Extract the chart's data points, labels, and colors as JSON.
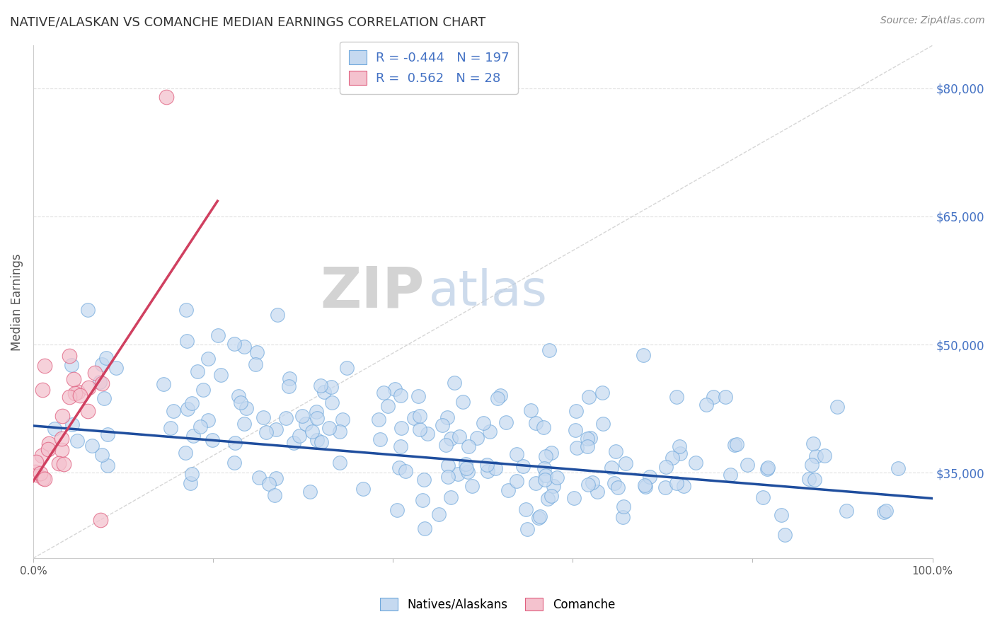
{
  "title": "NATIVE/ALASKAN VS COMANCHE MEDIAN EARNINGS CORRELATION CHART",
  "source": "Source: ZipAtlas.com",
  "ylabel": "Median Earnings",
  "xlim": [
    0.0,
    1.0
  ],
  "ylim": [
    25000,
    85000
  ],
  "y_tick_labels": [
    "$35,000",
    "$50,000",
    "$65,000",
    "$80,000"
  ],
  "y_tick_values": [
    35000,
    50000,
    65000,
    80000
  ],
  "legend_R_blue": "-0.444",
  "legend_N_blue": "197",
  "legend_R_pink": "0.562",
  "legend_N_pink": "28",
  "blue_fill": "#c5d9f0",
  "blue_edge": "#6fa8dc",
  "pink_fill": "#f4c2ce",
  "pink_edge": "#e06080",
  "blue_line_color": "#1f4e9e",
  "pink_line_color": "#d04060",
  "diag_line_color": "#cccccc",
  "background_color": "#ffffff",
  "grid_color": "#e0e0e0",
  "title_color": "#333333",
  "axis_label_color": "#555555",
  "tick_color_y": "#4472c4",
  "watermark_zip_color": "#cccccc",
  "watermark_atlas_color": "#aabbdd",
  "seed": 42,
  "n_blue": 197,
  "n_pink": 28,
  "R_blue": -0.444,
  "R_pink": 0.562
}
